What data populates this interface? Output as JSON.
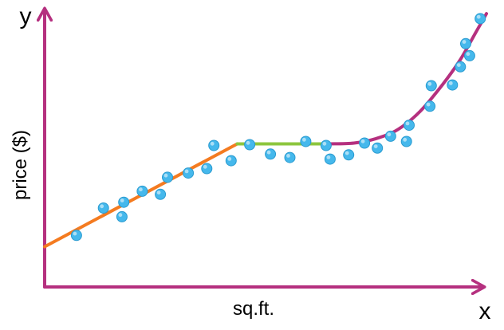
{
  "chart_data": {
    "type": "scatter",
    "title": "",
    "xlabel": "sq.ft.",
    "ylabel": "price ($)",
    "axis_letters": {
      "x": "x",
      "y": "y"
    },
    "xlim": [
      0,
      100
    ],
    "ylim": [
      0,
      100
    ],
    "grid": false,
    "legend": "none",
    "colors": {
      "axes": "#b5307f",
      "points_fill": "#45b8ec",
      "points_edge": "#2a9bd0",
      "fit_segment_1": "#f47b20",
      "fit_segment_2": "#8cc63e",
      "fit_segment_3": "#b5307f"
    },
    "points": [
      {
        "x": 7.2,
        "y": 19.6
      },
      {
        "x": 13.3,
        "y": 30.0
      },
      {
        "x": 17.5,
        "y": 26.7
      },
      {
        "x": 17.9,
        "y": 32.2
      },
      {
        "x": 22.1,
        "y": 36.4
      },
      {
        "x": 26.2,
        "y": 35.2
      },
      {
        "x": 27.8,
        "y": 41.7
      },
      {
        "x": 32.5,
        "y": 43.3
      },
      {
        "x": 36.7,
        "y": 45.0
      },
      {
        "x": 38.3,
        "y": 53.8
      },
      {
        "x": 42.2,
        "y": 48.0
      },
      {
        "x": 46.4,
        "y": 54.1
      },
      {
        "x": 51.1,
        "y": 50.5
      },
      {
        "x": 55.5,
        "y": 49.2
      },
      {
        "x": 59.1,
        "y": 55.3
      },
      {
        "x": 63.7,
        "y": 53.8
      },
      {
        "x": 64.6,
        "y": 48.6
      },
      {
        "x": 68.8,
        "y": 50.2
      },
      {
        "x": 72.4,
        "y": 54.7
      },
      {
        "x": 75.3,
        "y": 52.8
      },
      {
        "x": 78.3,
        "y": 57.3
      },
      {
        "x": 81.9,
        "y": 55.3
      },
      {
        "x": 82.5,
        "y": 61.5
      },
      {
        "x": 87.2,
        "y": 68.7
      },
      {
        "x": 87.5,
        "y": 76.5
      },
      {
        "x": 92.3,
        "y": 76.8
      },
      {
        "x": 94.1,
        "y": 83.7
      },
      {
        "x": 95.3,
        "y": 92.5
      },
      {
        "x": 96.2,
        "y": 87.9
      },
      {
        "x": 98.6,
        "y": 102.0
      }
    ],
    "fit": [
      {
        "name": "",
        "style": "linear",
        "points": [
          {
            "x": 0,
            "y": 15.3
          },
          {
            "x": 43.6,
            "y": 54.4
          }
        ]
      },
      {
        "name": "",
        "style": "flat",
        "points": [
          {
            "x": 43.6,
            "y": 54.4
          },
          {
            "x": 64.3,
            "y": 54.4
          }
        ]
      },
      {
        "name": "",
        "style": "curve",
        "points": [
          {
            "x": 64.3,
            "y": 54.4
          },
          {
            "x": 70.0,
            "y": 54.7
          },
          {
            "x": 75.0,
            "y": 56.4
          },
          {
            "x": 80.0,
            "y": 59.9
          },
          {
            "x": 85.0,
            "y": 66.8
          },
          {
            "x": 90.0,
            "y": 76.8
          },
          {
            "x": 94.0,
            "y": 86.2
          },
          {
            "x": 97.5,
            "y": 96.5
          },
          {
            "x": 100.0,
            "y": 103.9
          }
        ]
      }
    ]
  }
}
